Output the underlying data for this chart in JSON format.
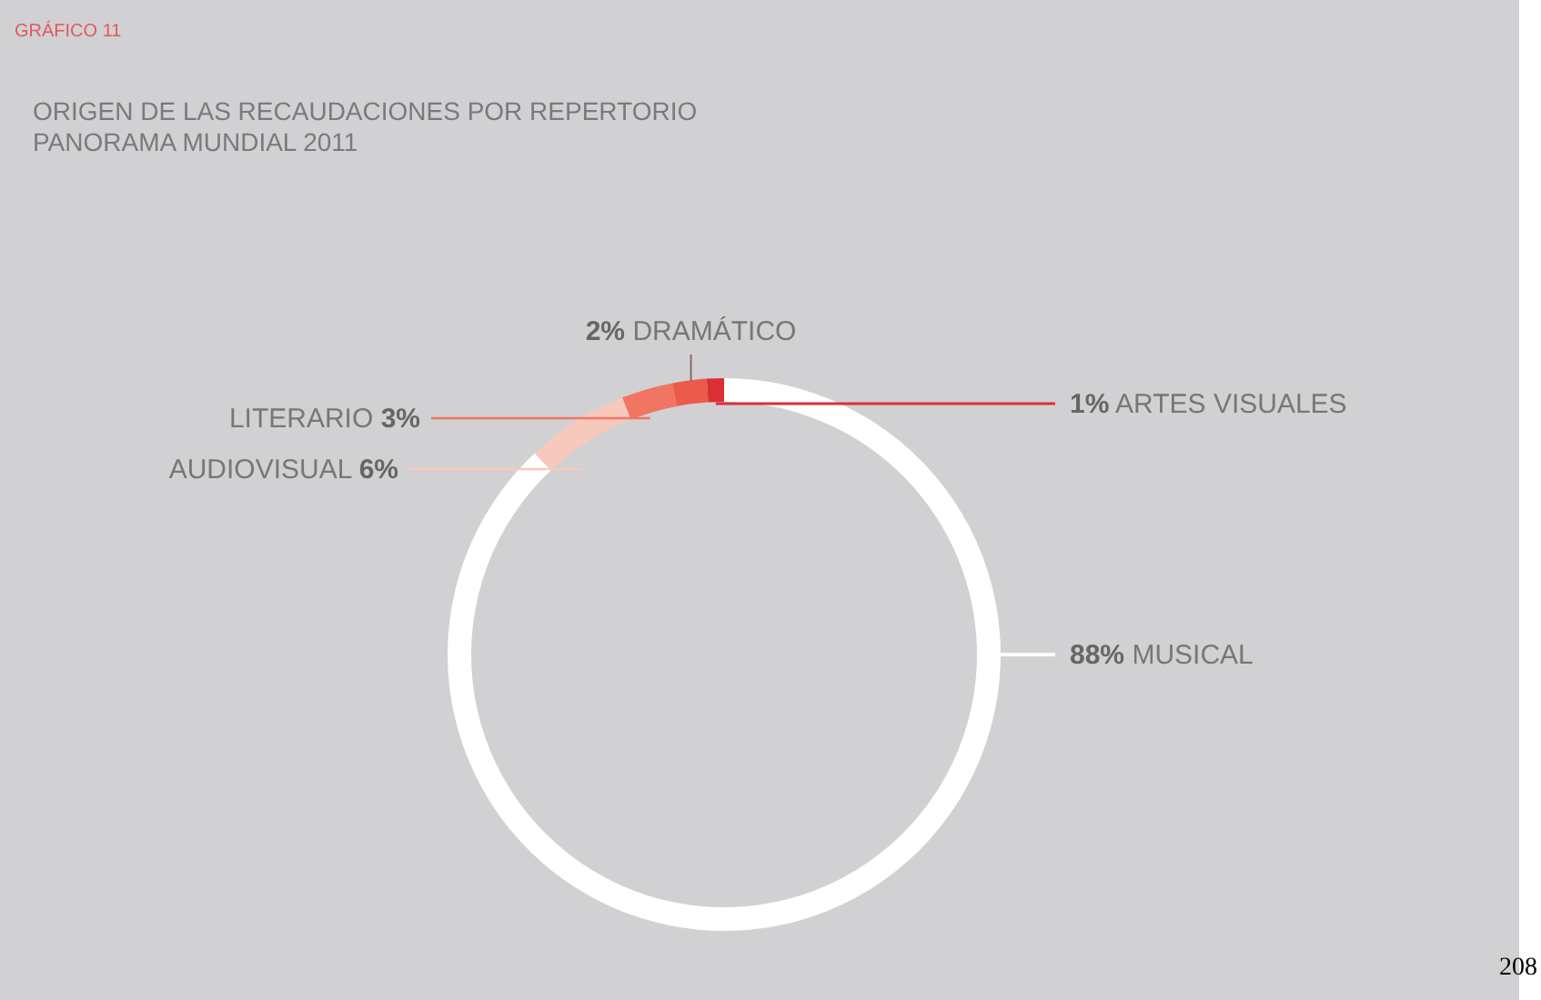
{
  "chart_data": {
    "type": "donut",
    "title": "GRÁFICO 11",
    "subtitle": "ORIGEN DE LAS RECAUDACIONES POR REPERTORIO\nPANORAMA MUNDIAL 2011",
    "categories": [
      "MUSICAL",
      "AUDIOVISUAL",
      "LITERARIO",
      "DRAMÁTICO",
      "ARTES VISUALES"
    ],
    "values": [
      88,
      6,
      3,
      2,
      1
    ],
    "value_labels": [
      "88%",
      "6%",
      "3%",
      "2%",
      "1%"
    ],
    "colors": [
      "#ffffff",
      "#f7c9bc",
      "#f07563",
      "#ec5a4c",
      "#dc2f33"
    ],
    "annotations": [
      "208"
    ]
  }
}
